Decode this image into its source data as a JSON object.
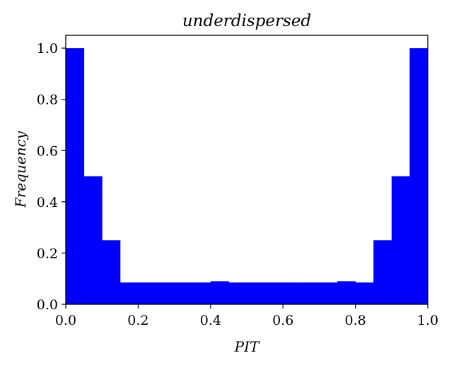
{
  "chart_data": {
    "type": "bar",
    "title": "underdispersed",
    "xlabel": "PIT",
    "ylabel": "Frequency",
    "xlim": [
      0.0,
      1.0
    ],
    "ylim": [
      0.0,
      1.05
    ],
    "xticks": [
      "0.0",
      "0.2",
      "0.4",
      "0.6",
      "0.8",
      "1.0"
    ],
    "yticks": [
      "0.0",
      "0.2",
      "0.4",
      "0.6",
      "0.8",
      "1.0"
    ],
    "grid": false,
    "bar_color": "#0000ff",
    "bins": [
      {
        "start": 0.0,
        "end": 0.05,
        "value": 1.0
      },
      {
        "start": 0.05,
        "end": 0.1,
        "value": 0.5
      },
      {
        "start": 0.1,
        "end": 0.15,
        "value": 0.25
      },
      {
        "start": 0.15,
        "end": 0.2,
        "value": 0.085
      },
      {
        "start": 0.2,
        "end": 0.25,
        "value": 0.085
      },
      {
        "start": 0.25,
        "end": 0.3,
        "value": 0.085
      },
      {
        "start": 0.3,
        "end": 0.35,
        "value": 0.085
      },
      {
        "start": 0.35,
        "end": 0.4,
        "value": 0.085
      },
      {
        "start": 0.4,
        "end": 0.45,
        "value": 0.09
      },
      {
        "start": 0.45,
        "end": 0.5,
        "value": 0.085
      },
      {
        "start": 0.5,
        "end": 0.55,
        "value": 0.085
      },
      {
        "start": 0.55,
        "end": 0.6,
        "value": 0.085
      },
      {
        "start": 0.6,
        "end": 0.65,
        "value": 0.085
      },
      {
        "start": 0.65,
        "end": 0.7,
        "value": 0.085
      },
      {
        "start": 0.7,
        "end": 0.75,
        "value": 0.085
      },
      {
        "start": 0.75,
        "end": 0.8,
        "value": 0.09
      },
      {
        "start": 0.8,
        "end": 0.85,
        "value": 0.085
      },
      {
        "start": 0.85,
        "end": 0.9,
        "value": 0.25
      },
      {
        "start": 0.9,
        "end": 0.95,
        "value": 0.5
      },
      {
        "start": 0.95,
        "end": 1.0,
        "value": 1.0
      }
    ]
  }
}
